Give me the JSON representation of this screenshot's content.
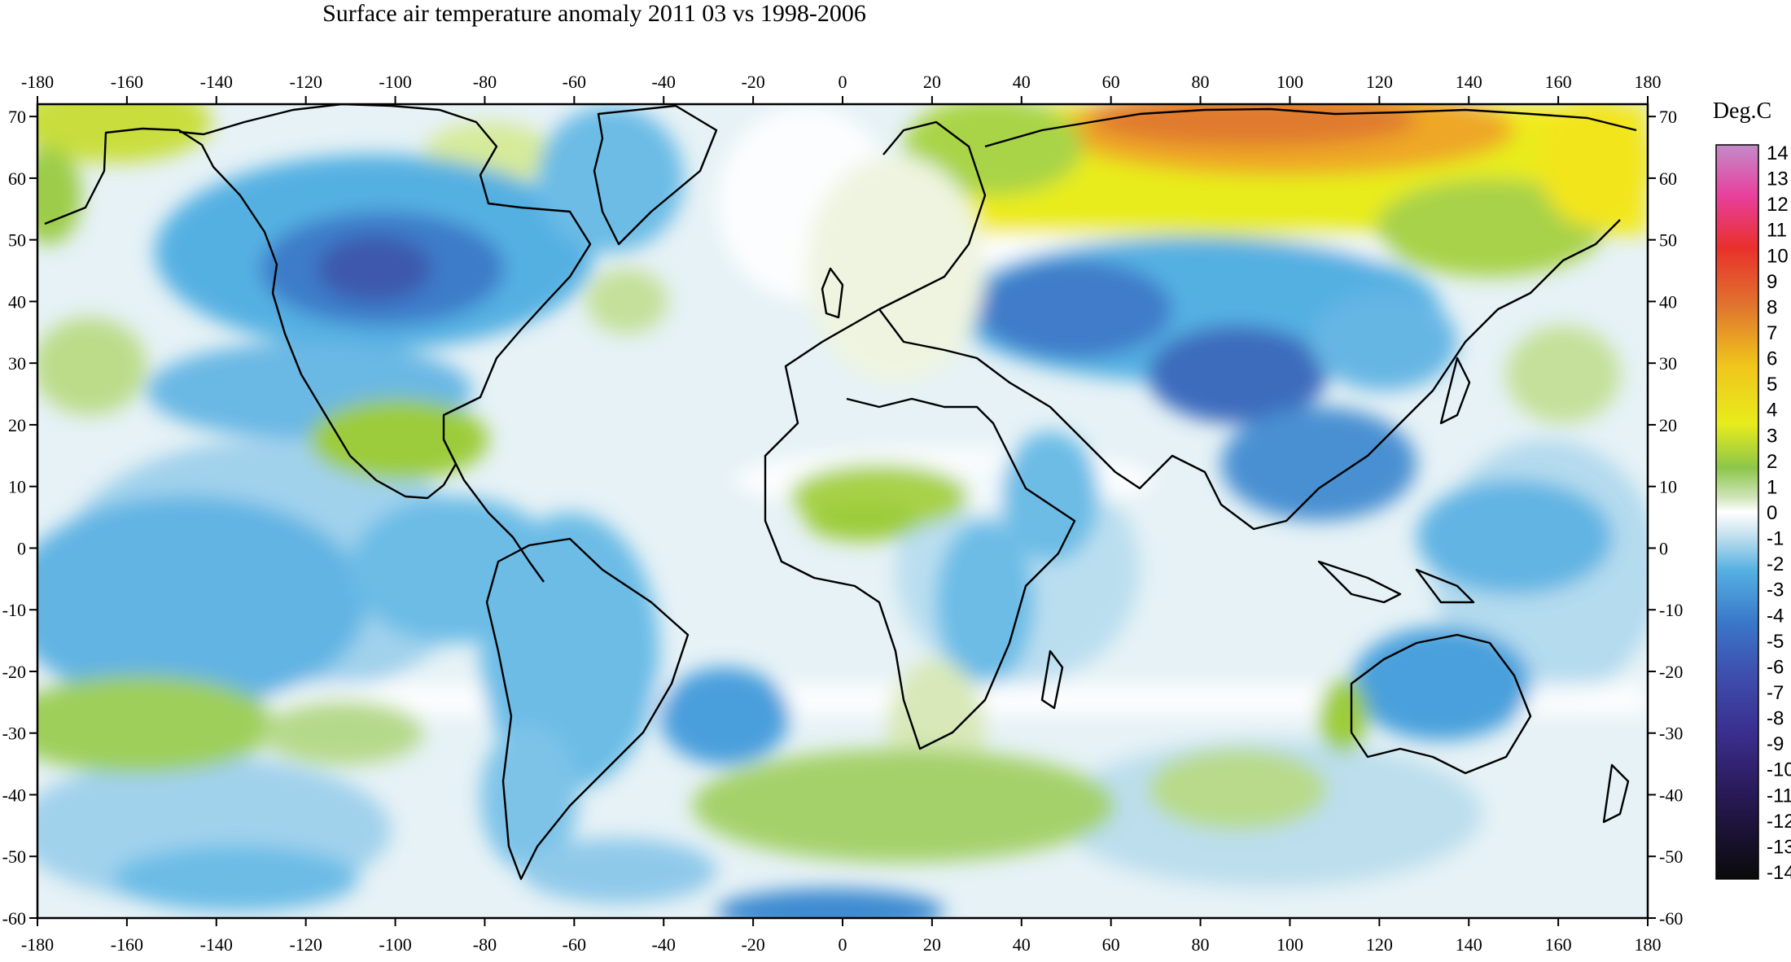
{
  "title": "Surface air temperature anomaly 2011 03 vs 1998-2006",
  "legend": {
    "unit": "Deg.C",
    "levels": [
      14,
      13,
      12,
      11,
      10,
      9,
      8,
      7,
      6,
      5,
      4,
      3,
      2,
      1,
      0,
      -1,
      -2,
      -3,
      -4,
      -5,
      -6,
      -7,
      -8,
      -9,
      -10,
      -11,
      -12,
      -13,
      -14
    ]
  },
  "axes": {
    "lon_ticks": [
      -180,
      -160,
      -140,
      -120,
      -100,
      -80,
      -60,
      -40,
      -20,
      0,
      20,
      40,
      60,
      80,
      100,
      120,
      140,
      160,
      180
    ],
    "lat_ticks": [
      70,
      60,
      50,
      40,
      30,
      20,
      10,
      0,
      -10,
      -20,
      -30,
      -40,
      -50,
      -60
    ],
    "lon_range": [
      -180,
      180
    ],
    "lat_range": [
      -60,
      72
    ]
  },
  "colors": {
    "strong_warm": "#e07a2e",
    "warm": "#f2ea1c",
    "mild_warm": "#8cc64a",
    "neutral": "#ffffff",
    "mild_cool": "#c7e3ef",
    "cool": "#55b0e2",
    "strong_cool": "#3a67c2"
  }
}
